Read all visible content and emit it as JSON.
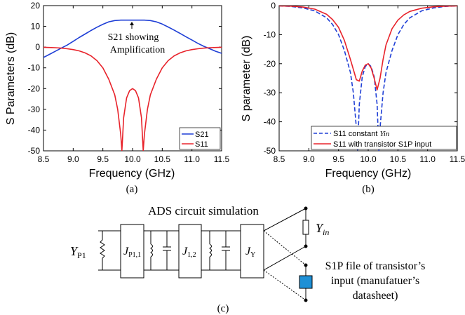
{
  "chart_data": [
    {
      "type": "line",
      "panel_label": "(a)",
      "xlabel": "Frequency (GHz)",
      "ylabel": "S Parameters (dB)",
      "xlim": [
        8.5,
        11.5
      ],
      "ylim": [
        -50,
        20
      ],
      "xticks": [
        8.5,
        9.0,
        9.5,
        10.0,
        10.5,
        11.0,
        11.5
      ],
      "xtick_labels": [
        "8.5",
        "9.0",
        "9.5",
        "10.0",
        "10.5",
        "11.0",
        "11.5"
      ],
      "yticks": [
        -50,
        -40,
        -30,
        -20,
        -10,
        0,
        10,
        20
      ],
      "ytick_labels": [
        "-50",
        "-40",
        "-30",
        "-20",
        "-10",
        "0",
        "10",
        "20"
      ],
      "annotation": {
        "line1": "S21 showing",
        "line2": "Amplification",
        "x": 10.0,
        "y": 13
      },
      "legend_position": "bottom-right",
      "series": [
        {
          "name": "S21",
          "color": "#1f3fd6",
          "style": "solid",
          "x": [
            8.5,
            8.6,
            8.7,
            8.8,
            8.9,
            9.0,
            9.1,
            9.2,
            9.3,
            9.4,
            9.5,
            9.6,
            9.7,
            9.8,
            9.9,
            10.0,
            10.1,
            10.2,
            10.3,
            10.4,
            10.5,
            10.6,
            10.7,
            10.8,
            10.9,
            11.0,
            11.1,
            11.2,
            11.3,
            11.4,
            11.5
          ],
          "y": [
            -5.0,
            -3.5,
            -2.0,
            -0.5,
            1.0,
            2.8,
            4.6,
            6.3,
            8.0,
            9.6,
            11.0,
            12.2,
            12.8,
            13.0,
            13.0,
            13.0,
            13.0,
            13.0,
            12.8,
            12.2,
            11.1,
            9.7,
            8.2,
            6.6,
            5.0,
            3.4,
            1.8,
            0.4,
            -0.8,
            -2.0,
            -3.0
          ]
        },
        {
          "name": "S11",
          "color": "#e8232b",
          "style": "solid",
          "x": [
            8.5,
            8.6,
            8.7,
            8.8,
            8.9,
            9.0,
            9.1,
            9.2,
            9.3,
            9.4,
            9.5,
            9.6,
            9.7,
            9.75,
            9.8,
            9.82,
            9.85,
            9.9,
            9.95,
            10.0,
            10.05,
            10.1,
            10.15,
            10.18,
            10.2,
            10.25,
            10.3,
            10.4,
            10.5,
            10.6,
            10.7,
            10.8,
            10.9,
            11.0,
            11.1,
            11.2,
            11.3,
            11.4,
            11.5
          ],
          "y": [
            -0.1,
            -0.2,
            -0.3,
            -0.5,
            -0.8,
            -1.2,
            -1.8,
            -2.8,
            -4.2,
            -6.5,
            -10.0,
            -15.5,
            -23.0,
            -30.0,
            -42.0,
            -50.0,
            -34.0,
            -24.5,
            -21.0,
            -20.0,
            -21.0,
            -24.5,
            -34.0,
            -50.0,
            -42.0,
            -30.0,
            -23.0,
            -15.5,
            -10.0,
            -6.5,
            -4.2,
            -2.8,
            -1.8,
            -1.2,
            -0.8,
            -0.5,
            -0.3,
            -0.2,
            -0.1
          ]
        }
      ]
    },
    {
      "type": "line",
      "panel_label": "(b)",
      "xlabel": "Frequency (GHz)",
      "ylabel": "S parameter (dB)",
      "xlim": [
        8.5,
        11.5
      ],
      "ylim": [
        -50,
        0
      ],
      "xticks": [
        8.5,
        9.0,
        9.5,
        10.0,
        10.5,
        11.0,
        11.5
      ],
      "xtick_labels": [
        "8.5",
        "9.0",
        "9.5",
        "10.0",
        "10.5",
        "11.0",
        "11.5"
      ],
      "yticks": [
        -50,
        -40,
        -30,
        -20,
        -10,
        0
      ],
      "ytick_labels": [
        "-50",
        "-40",
        "-30",
        "-20",
        "-10",
        "0"
      ],
      "legend_position": "bottom-right",
      "series": [
        {
          "name": "S11 constant Yin",
          "name_parts": {
            "main": "S11 constant ",
            "italic": "Yin"
          },
          "color": "#1f3fd6",
          "style": "dashed",
          "x": [
            8.5,
            8.7,
            8.9,
            9.1,
            9.3,
            9.4,
            9.5,
            9.6,
            9.7,
            9.75,
            9.8,
            9.82,
            9.85,
            9.9,
            9.95,
            10.0,
            10.05,
            10.1,
            10.15,
            10.18,
            10.2,
            10.25,
            10.3,
            10.4,
            10.5,
            10.6,
            10.7,
            10.9,
            11.1,
            11.3,
            11.5
          ],
          "y": [
            -0.1,
            -0.3,
            -0.8,
            -1.8,
            -4.2,
            -6.5,
            -10.0,
            -15.5,
            -23.0,
            -30.0,
            -42.0,
            -50.0,
            -34.0,
            -24.5,
            -21.0,
            -20.0,
            -21.0,
            -24.5,
            -34.0,
            -50.0,
            -42.0,
            -30.0,
            -23.0,
            -15.5,
            -10.0,
            -6.5,
            -4.2,
            -1.8,
            -0.8,
            -0.3,
            -0.1
          ]
        },
        {
          "name": "S11 with transistor S1P input",
          "color": "#e8232b",
          "style": "solid",
          "x": [
            8.5,
            8.7,
            8.9,
            9.1,
            9.3,
            9.4,
            9.5,
            9.6,
            9.7,
            9.8,
            9.85,
            9.9,
            9.95,
            10.0,
            10.05,
            10.1,
            10.15,
            10.2,
            10.25,
            10.3,
            10.4,
            10.5,
            10.6,
            10.7,
            10.9,
            11.1,
            11.3,
            11.5
          ],
          "y": [
            -0.1,
            -0.2,
            -0.5,
            -1.2,
            -3.0,
            -4.8,
            -7.5,
            -12.0,
            -18.5,
            -25.5,
            -26.0,
            -22.5,
            -20.5,
            -20.0,
            -21.5,
            -25.0,
            -29.0,
            -25.0,
            -18.5,
            -13.5,
            -8.0,
            -5.0,
            -3.2,
            -2.0,
            -0.9,
            -0.4,
            -0.2,
            -0.1
          ]
        }
      ]
    }
  ],
  "circuit": {
    "title": "ADS circuit simulation",
    "port_label": "YP1",
    "port_main": "Y",
    "port_sub": "P1",
    "block1_main": "J",
    "block1_sub": "P1,1",
    "block2_main": "J",
    "block2_sub": "1,2",
    "block3_main": "J",
    "block3_sub": "Y",
    "yin_main": "Y",
    "yin_sub": "in",
    "s1p_line1": "S1P file of transistor’s",
    "s1p_line2": "input (manufatuer’s",
    "s1p_line3": "datasheet)",
    "panel_label": "(c)",
    "title_color": "#e8237e",
    "s1p_color": "#1f4fbf",
    "box_color": "#1e90d6"
  }
}
